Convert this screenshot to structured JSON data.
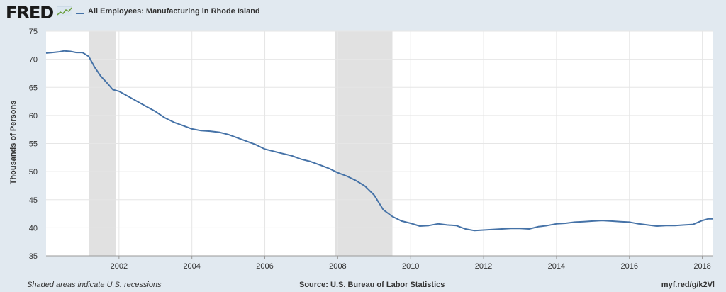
{
  "header": {
    "logo_text": "FRED",
    "legend_label": "All Employees: Manufacturing in Rhode Island",
    "series_color": "#4572a7"
  },
  "footer": {
    "recession_note": "Shaded areas indicate U.S. recessions",
    "source": "Source: U.S. Bureau of Labor Statistics",
    "url": "myf.red/g/k2Vl"
  },
  "chart_data": {
    "type": "line",
    "title": "All Employees: Manufacturing in Rhode Island",
    "xlabel": "",
    "ylabel": "Thousands of Persons",
    "xlim": [
      2000.0,
      2018.3
    ],
    "ylim": [
      35,
      75
    ],
    "x_ticks": [
      "2002",
      "2004",
      "2006",
      "2008",
      "2010",
      "2012",
      "2014",
      "2016",
      "2018"
    ],
    "y_ticks": [
      "35",
      "40",
      "45",
      "50",
      "55",
      "60",
      "65",
      "70",
      "75"
    ],
    "grid": true,
    "recessions": [
      [
        2001.17,
        2001.92
      ],
      [
        2007.92,
        2009.5
      ]
    ],
    "series": [
      {
        "name": "All Employees: Manufacturing in Rhode Island",
        "color": "#4572a7",
        "x": [
          2000.0,
          2000.17,
          2000.33,
          2000.5,
          2000.67,
          2000.83,
          2001.0,
          2001.17,
          2001.33,
          2001.5,
          2001.67,
          2001.83,
          2002.0,
          2002.25,
          2002.5,
          2002.75,
          2003.0,
          2003.25,
          2003.5,
          2003.75,
          2004.0,
          2004.25,
          2004.5,
          2004.75,
          2005.0,
          2005.25,
          2005.5,
          2005.75,
          2006.0,
          2006.25,
          2006.5,
          2006.75,
          2007.0,
          2007.25,
          2007.5,
          2007.75,
          2008.0,
          2008.25,
          2008.5,
          2008.75,
          2009.0,
          2009.25,
          2009.5,
          2009.75,
          2010.0,
          2010.25,
          2010.5,
          2010.75,
          2011.0,
          2011.25,
          2011.5,
          2011.75,
          2012.0,
          2012.25,
          2012.5,
          2012.75,
          2013.0,
          2013.25,
          2013.5,
          2013.75,
          2014.0,
          2014.25,
          2014.5,
          2014.75,
          2015.0,
          2015.25,
          2015.5,
          2015.75,
          2016.0,
          2016.25,
          2016.5,
          2016.75,
          2017.0,
          2017.25,
          2017.5,
          2017.75,
          2018.0,
          2018.17,
          2018.3
        ],
        "values": [
          71.1,
          71.2,
          71.3,
          71.5,
          71.4,
          71.2,
          71.2,
          70.5,
          68.6,
          67.0,
          65.8,
          64.6,
          64.3,
          63.4,
          62.5,
          61.6,
          60.7,
          59.6,
          58.8,
          58.2,
          57.6,
          57.3,
          57.2,
          57.0,
          56.6,
          56.0,
          55.4,
          54.8,
          54.0,
          53.6,
          53.2,
          52.8,
          52.2,
          51.8,
          51.2,
          50.6,
          49.8,
          49.2,
          48.4,
          47.4,
          45.8,
          43.2,
          42.0,
          41.2,
          40.8,
          40.3,
          40.4,
          40.7,
          40.5,
          40.4,
          39.8,
          39.5,
          39.6,
          39.7,
          39.8,
          39.9,
          39.9,
          39.8,
          40.2,
          40.4,
          40.7,
          40.8,
          41.0,
          41.1,
          41.2,
          41.3,
          41.2,
          41.1,
          41.0,
          40.7,
          40.5,
          40.3,
          40.4,
          40.4,
          40.5,
          40.6,
          41.3,
          41.6,
          41.6
        ]
      }
    ]
  }
}
